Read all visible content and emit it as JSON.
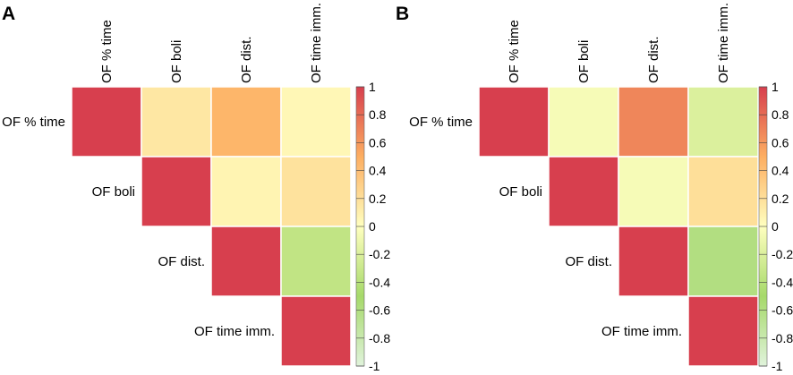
{
  "chart_data": [
    {
      "type": "heatmap",
      "panel_label": "A",
      "variables": [
        "OF % time",
        "OF boli",
        "OF dist.",
        "OF time imm."
      ],
      "layout": "upper-triangle correlation matrix",
      "cells": [
        {
          "row": 0,
          "col": 0,
          "value": 1.0
        },
        {
          "row": 0,
          "col": 1,
          "value": 0.15
        },
        {
          "row": 0,
          "col": 2,
          "value": 0.45
        },
        {
          "row": 0,
          "col": 3,
          "value": 0.05
        },
        {
          "row": 1,
          "col": 1,
          "value": 1.0
        },
        {
          "row": 1,
          "col": 2,
          "value": 0.07
        },
        {
          "row": 1,
          "col": 3,
          "value": 0.18
        },
        {
          "row": 2,
          "col": 2,
          "value": 1.0
        },
        {
          "row": 2,
          "col": 3,
          "value": -0.35
        },
        {
          "row": 3,
          "col": 3,
          "value": 1.0
        }
      ],
      "colorbar": {
        "range": [
          -1,
          1
        ],
        "ticks": [
          "1",
          "0.8",
          "0.6",
          "0.4",
          "0.2",
          "0",
          "-0.2",
          "-0.4",
          "-0.6",
          "-0.8",
          "-1"
        ]
      }
    },
    {
      "type": "heatmap",
      "panel_label": "B",
      "variables": [
        "OF % time",
        "OF boli",
        "OF dist.",
        "OF time imm."
      ],
      "layout": "upper-triangle correlation matrix",
      "cells": [
        {
          "row": 0,
          "col": 0,
          "value": 1.0
        },
        {
          "row": 0,
          "col": 1,
          "value": -0.05
        },
        {
          "row": 0,
          "col": 2,
          "value": 0.68
        },
        {
          "row": 0,
          "col": 3,
          "value": -0.2
        },
        {
          "row": 1,
          "col": 1,
          "value": 1.0
        },
        {
          "row": 1,
          "col": 2,
          "value": -0.05
        },
        {
          "row": 1,
          "col": 3,
          "value": 0.2
        },
        {
          "row": 2,
          "col": 2,
          "value": 1.0
        },
        {
          "row": 2,
          "col": 3,
          "value": -0.6
        },
        {
          "row": 3,
          "col": 3,
          "value": 1.0
        }
      ],
      "colorbar": {
        "range": [
          -1,
          1
        ],
        "ticks": [
          "1",
          "0.8",
          "0.6",
          "0.4",
          "0.2",
          "0",
          "-0.2",
          "-0.4",
          "-0.6",
          "-0.8",
          "-1"
        ]
      }
    }
  ],
  "colors": {
    "scale": [
      "#e0f3db",
      "#a6d96a",
      "#ffffbf",
      "#fdae61",
      "#d73f4e"
    ]
  }
}
